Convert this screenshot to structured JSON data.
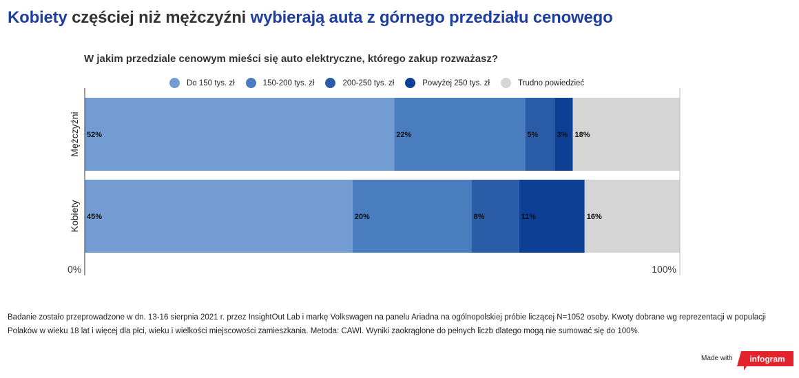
{
  "header": {
    "title_part1": "Kobiety",
    "title_part2": " częściej niż mężczyźni ",
    "title_part3": "wybierają auta z górnego przedziału cenowego"
  },
  "chart_data": {
    "type": "bar",
    "orientation": "horizontal",
    "stacked": true,
    "title": "W jakim przedziale cenowym mieści się auto elektryczne, którego zakup rozważasz?",
    "categories": [
      "Mężczyźni",
      "Kobiety"
    ],
    "series": [
      {
        "name": "Do 150 tys. zł",
        "values": [
          52,
          45
        ],
        "labels": [
          "52%",
          "45%"
        ],
        "color": "#739dd2"
      },
      {
        "name": "150-200 tys. zł",
        "values": [
          22,
          20
        ],
        "labels": [
          "22%",
          "20%"
        ],
        "color": "#4a7dc0"
      },
      {
        "name": "200-250 tys. zł",
        "values": [
          5,
          8
        ],
        "labels": [
          "5%",
          "8%"
        ],
        "color": "#2a5ca8"
      },
      {
        "name": "Powyżej 250 tys. zł",
        "values": [
          3,
          11
        ],
        "labels": [
          "3%",
          "11%"
        ],
        "color": "#0d3f94"
      },
      {
        "name": "Trudno powiedzieć",
        "values": [
          18,
          16
        ],
        "labels": [
          "18%",
          "16%"
        ],
        "color": "#d6d5d6"
      }
    ],
    "xlim": [
      0,
      100
    ],
    "axis_labels": {
      "min": "0%",
      "max": "100%"
    },
    "legend_position": "top"
  },
  "footnote": "Badanie zostało przeprowadzone w dn. 13-16 sierpnia 2021 r. przez InsightOut Lab i markę Volkswagen na panelu Ariadna na ogólnopolskiej próbie liczącej N=1052 osoby. Kwoty dobrane wg reprezentacji w populacji Polaków w wieku 18 lat i więcej dla płci, wieku i wielkości miejscowości zamieszkania. Metoda: CAWI. Wyniki zaokrąglone do pełnych liczb dlatego mogą nie sumować się do 100%.",
  "branding": {
    "made_with": "Made with",
    "logo_text": "infogram",
    "logo_color": "#e3232b"
  }
}
